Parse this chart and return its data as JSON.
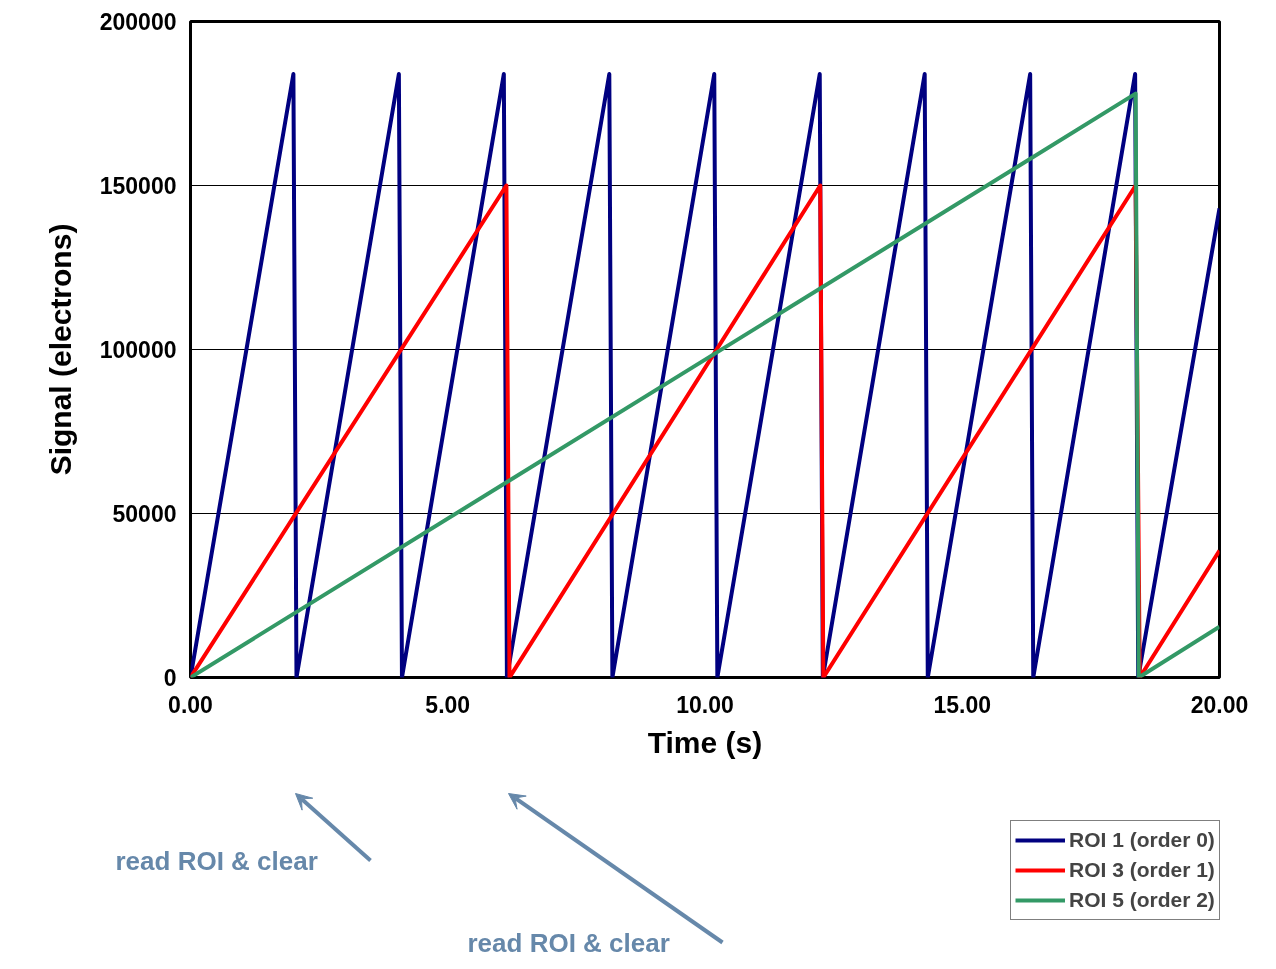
{
  "chart_data": {
    "type": "line",
    "xlabel": "Time (s)",
    "ylabel": "Signal (electrons)",
    "xlim": [
      0,
      20
    ],
    "ylim": [
      0,
      200000
    ],
    "xticks": [
      {
        "value": 0,
        "label": "0.00"
      },
      {
        "value": 5,
        "label": "5.00"
      },
      {
        "value": 10,
        "label": "10.00"
      },
      {
        "value": 15,
        "label": "15.00"
      },
      {
        "value": 20,
        "label": "20.00"
      }
    ],
    "yticks": [
      0,
      50000,
      100000,
      150000,
      200000
    ],
    "grid": "y",
    "legend": "bottom right",
    "marker": "none",
    "line_style": "solid",
    "series": [
      {
        "name": "ROI 1 (order 0)",
        "color": "#000080",
        "x": [
          0,
          2.0,
          2.06,
          4.05,
          4.11,
          6.09,
          6.15,
          8.14,
          8.2,
          10.18,
          10.24,
          12.23,
          12.29,
          14.27,
          14.33,
          16.32,
          16.38,
          18.36,
          18.42,
          20
        ],
        "values": [
          0,
          184000,
          0,
          184000,
          0,
          184000,
          0,
          184000,
          0,
          184000,
          0,
          184000,
          0,
          184000,
          0,
          184000,
          0,
          184000,
          0,
          143000
        ]
      },
      {
        "name": "ROI 3 (order 1)",
        "color": "#ff0000",
        "x": [
          0,
          6.14,
          6.2,
          12.24,
          12.3,
          18.37,
          18.45,
          20
        ],
        "values": [
          0,
          150000,
          0,
          150000,
          0,
          150000,
          0,
          38700
        ]
      },
      {
        "name": "ROI 5 (order 2)",
        "color": "#339966",
        "x": [
          0,
          18.37,
          18.43,
          20
        ],
        "values": [
          0,
          178000,
          0,
          15500
        ]
      }
    ],
    "annotations": [
      "read ROI & clear",
      "read ROI & clear"
    ]
  }
}
